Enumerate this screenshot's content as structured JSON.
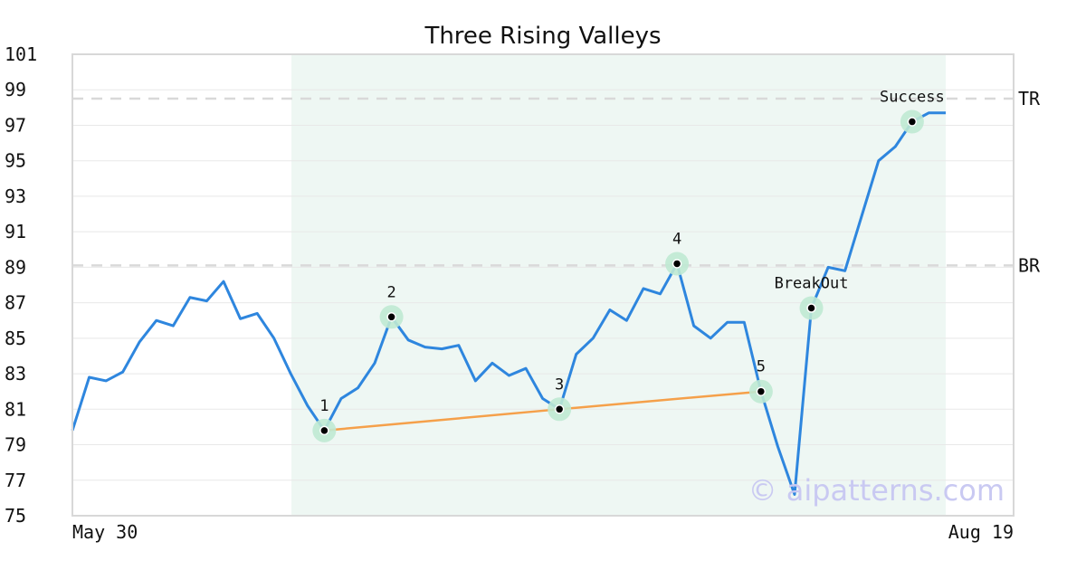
{
  "chart_data": {
    "type": "line",
    "title": "Three Rising Valleys",
    "xlabel": "",
    "ylabel": "",
    "x_tick_labels": [
      "May 30",
      "Aug 19"
    ],
    "ylim": [
      75,
      101
    ],
    "y_ticks": [
      75,
      77,
      79,
      81,
      83,
      85,
      87,
      89,
      91,
      93,
      95,
      97,
      99,
      101
    ],
    "grid": "horizontal",
    "series": [
      {
        "color": "#2e86de",
        "values": [
          79.8,
          82.8,
          82.6,
          83.1,
          84.8,
          86.0,
          85.7,
          87.3,
          87.1,
          88.2,
          86.1,
          86.4,
          85.0,
          83.0,
          81.2,
          79.8,
          81.6,
          82.2,
          83.6,
          86.2,
          84.9,
          84.5,
          84.4,
          84.6,
          82.6,
          83.6,
          82.9,
          83.3,
          81.6,
          81.0,
          84.1,
          85.0,
          86.6,
          86.0,
          87.8,
          87.5,
          89.2,
          85.7,
          85.0,
          85.9,
          85.9,
          82.0,
          78.9,
          76.2,
          86.7,
          89.0,
          88.8,
          91.9,
          95.0,
          95.8,
          97.2,
          97.7,
          97.7
        ]
      }
    ],
    "pattern_window": {
      "start_index": 13,
      "end_index": 52
    },
    "reference_lines": [
      {
        "label": "TR",
        "value": 98.5
      },
      {
        "label": "BR",
        "value": 89.1
      }
    ],
    "trendline": {
      "color": "#f5a04a",
      "points": [
        {
          "index": 15,
          "value": 79.8
        },
        {
          "index": 29,
          "value": 81.0
        },
        {
          "index": 41,
          "value": 82.0
        }
      ]
    },
    "markers": [
      {
        "label": "1",
        "index": 15,
        "value": 79.8,
        "label_pos": "above"
      },
      {
        "label": "2",
        "index": 19,
        "value": 86.2,
        "label_pos": "above"
      },
      {
        "label": "3",
        "index": 29,
        "value": 81.0,
        "label_pos": "above"
      },
      {
        "label": "4",
        "index": 36,
        "value": 89.2,
        "label_pos": "above"
      },
      {
        "label": "5",
        "index": 41,
        "value": 82.0,
        "label_pos": "above"
      },
      {
        "label": "BreakOut",
        "index": 44,
        "value": 86.7,
        "label_pos": "above"
      },
      {
        "label": "Success",
        "index": 50,
        "value": 97.2,
        "label_pos": "above"
      }
    ],
    "watermark": "© aipatterns.com"
  }
}
